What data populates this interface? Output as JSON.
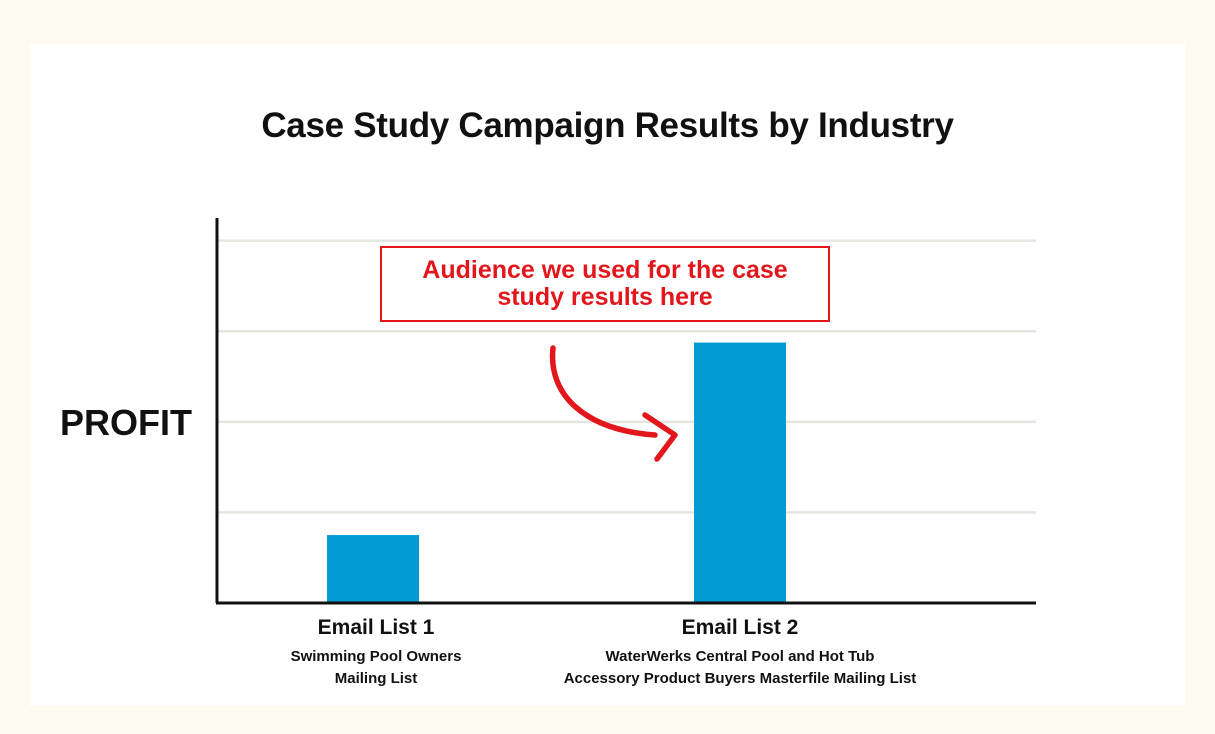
{
  "chart_data": {
    "type": "bar",
    "title": "Case Study Campaign Results by Industry",
    "xlabel": "",
    "ylabel": "PROFIT",
    "categories": [
      "Email List 1",
      "Email List 2"
    ],
    "category_descriptions": [
      [
        "Swimming Pool Owners",
        "Mailing List"
      ],
      [
        "WaterWerks Central Pool and Hot Tub",
        "Accessory Product Buyers Masterfile Mailing List"
      ]
    ],
    "values": [
      1.5,
      5.75
    ],
    "ylim": [
      0,
      8.5
    ],
    "grid": true,
    "y_ticks_labeled": false,
    "bar_color": "#029cd3",
    "annotation": {
      "text": "Audience we used for the case study results here",
      "color": "#e3161b",
      "points_to": "Email List 2"
    }
  }
}
